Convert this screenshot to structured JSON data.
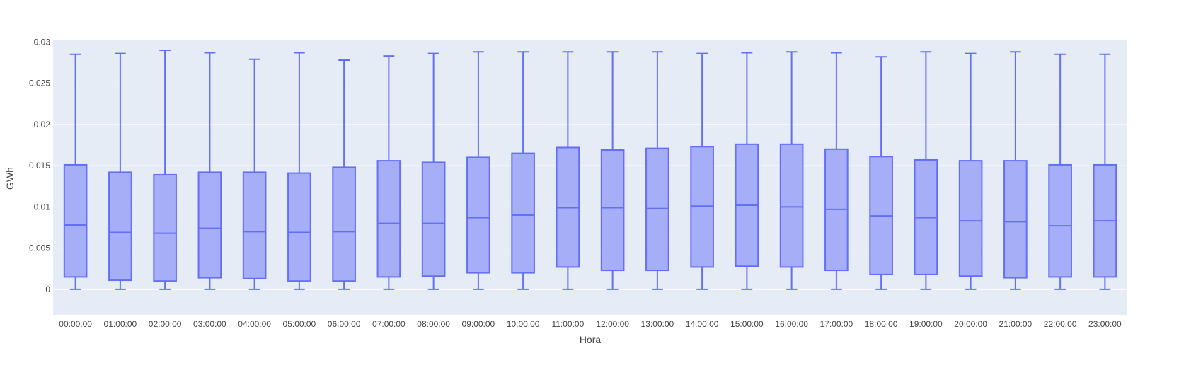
{
  "chart_data": {
    "type": "box",
    "title": "",
    "xlabel": "Hora",
    "ylabel": "GWh",
    "ylim": [
      -0.0031,
      0.0302
    ],
    "yticks": [
      0,
      0.005,
      0.01,
      0.015,
      0.02,
      0.025,
      0.03
    ],
    "ytick_labels": [
      "0",
      "0.005",
      "0.01",
      "0.015",
      "0.02",
      "0.025",
      "0.03"
    ],
    "grid": true,
    "colors": {
      "plot_bg": "#E5ECF6",
      "box_fill": "#A5AEF6",
      "box_line": "#636EFA",
      "grid": "#FFFFFF"
    },
    "categories": [
      "00:00:00",
      "01:00:00",
      "02:00:00",
      "03:00:00",
      "04:00:00",
      "05:00:00",
      "06:00:00",
      "07:00:00",
      "08:00:00",
      "09:00:00",
      "10:00:00",
      "11:00:00",
      "12:00:00",
      "13:00:00",
      "14:00:00",
      "15:00:00",
      "16:00:00",
      "17:00:00",
      "18:00:00",
      "19:00:00",
      "20:00:00",
      "21:00:00",
      "22:00:00",
      "23:00:00"
    ],
    "boxes": [
      {
        "min": 0,
        "q1": 0.0015,
        "median": 0.0078,
        "q3": 0.0151,
        "max": 0.0285
      },
      {
        "min": 0,
        "q1": 0.0011,
        "median": 0.0069,
        "q3": 0.0142,
        "max": 0.0286
      },
      {
        "min": 0,
        "q1": 0.001,
        "median": 0.0068,
        "q3": 0.0139,
        "max": 0.029
      },
      {
        "min": 0,
        "q1": 0.0014,
        "median": 0.0074,
        "q3": 0.0142,
        "max": 0.0287
      },
      {
        "min": 0,
        "q1": 0.0013,
        "median": 0.007,
        "q3": 0.0142,
        "max": 0.0279
      },
      {
        "min": 0,
        "q1": 0.001,
        "median": 0.0069,
        "q3": 0.0141,
        "max": 0.0287
      },
      {
        "min": 0,
        "q1": 0.001,
        "median": 0.007,
        "q3": 0.0148,
        "max": 0.0278
      },
      {
        "min": 0,
        "q1": 0.0015,
        "median": 0.008,
        "q3": 0.0156,
        "max": 0.0283
      },
      {
        "min": 0,
        "q1": 0.0016,
        "median": 0.008,
        "q3": 0.0154,
        "max": 0.0286
      },
      {
        "min": 0,
        "q1": 0.002,
        "median": 0.0087,
        "q3": 0.016,
        "max": 0.0288
      },
      {
        "min": 0,
        "q1": 0.002,
        "median": 0.009,
        "q3": 0.0165,
        "max": 0.0288
      },
      {
        "min": 0,
        "q1": 0.0027,
        "median": 0.0099,
        "q3": 0.0172,
        "max": 0.0288
      },
      {
        "min": 0,
        "q1": 0.0023,
        "median": 0.0099,
        "q3": 0.0169,
        "max": 0.0288
      },
      {
        "min": 0,
        "q1": 0.0023,
        "median": 0.0098,
        "q3": 0.0171,
        "max": 0.0288
      },
      {
        "min": 0,
        "q1": 0.0027,
        "median": 0.0101,
        "q3": 0.0173,
        "max": 0.0286
      },
      {
        "min": 0,
        "q1": 0.0028,
        "median": 0.0102,
        "q3": 0.0176,
        "max": 0.0287
      },
      {
        "min": 0,
        "q1": 0.0027,
        "median": 0.01,
        "q3": 0.0176,
        "max": 0.0288
      },
      {
        "min": 0,
        "q1": 0.0023,
        "median": 0.0097,
        "q3": 0.017,
        "max": 0.0287
      },
      {
        "min": 0,
        "q1": 0.0018,
        "median": 0.0089,
        "q3": 0.0161,
        "max": 0.0282
      },
      {
        "min": 0,
        "q1": 0.0018,
        "median": 0.0087,
        "q3": 0.0157,
        "max": 0.0288
      },
      {
        "min": 0,
        "q1": 0.0016,
        "median": 0.0083,
        "q3": 0.0156,
        "max": 0.0286
      },
      {
        "min": 0,
        "q1": 0.0014,
        "median": 0.0082,
        "q3": 0.0156,
        "max": 0.0288
      },
      {
        "min": 0,
        "q1": 0.0015,
        "median": 0.0077,
        "q3": 0.0151,
        "max": 0.0285
      },
      {
        "min": 0,
        "q1": 0.0015,
        "median": 0.0083,
        "q3": 0.0151,
        "max": 0.0285
      }
    ]
  }
}
